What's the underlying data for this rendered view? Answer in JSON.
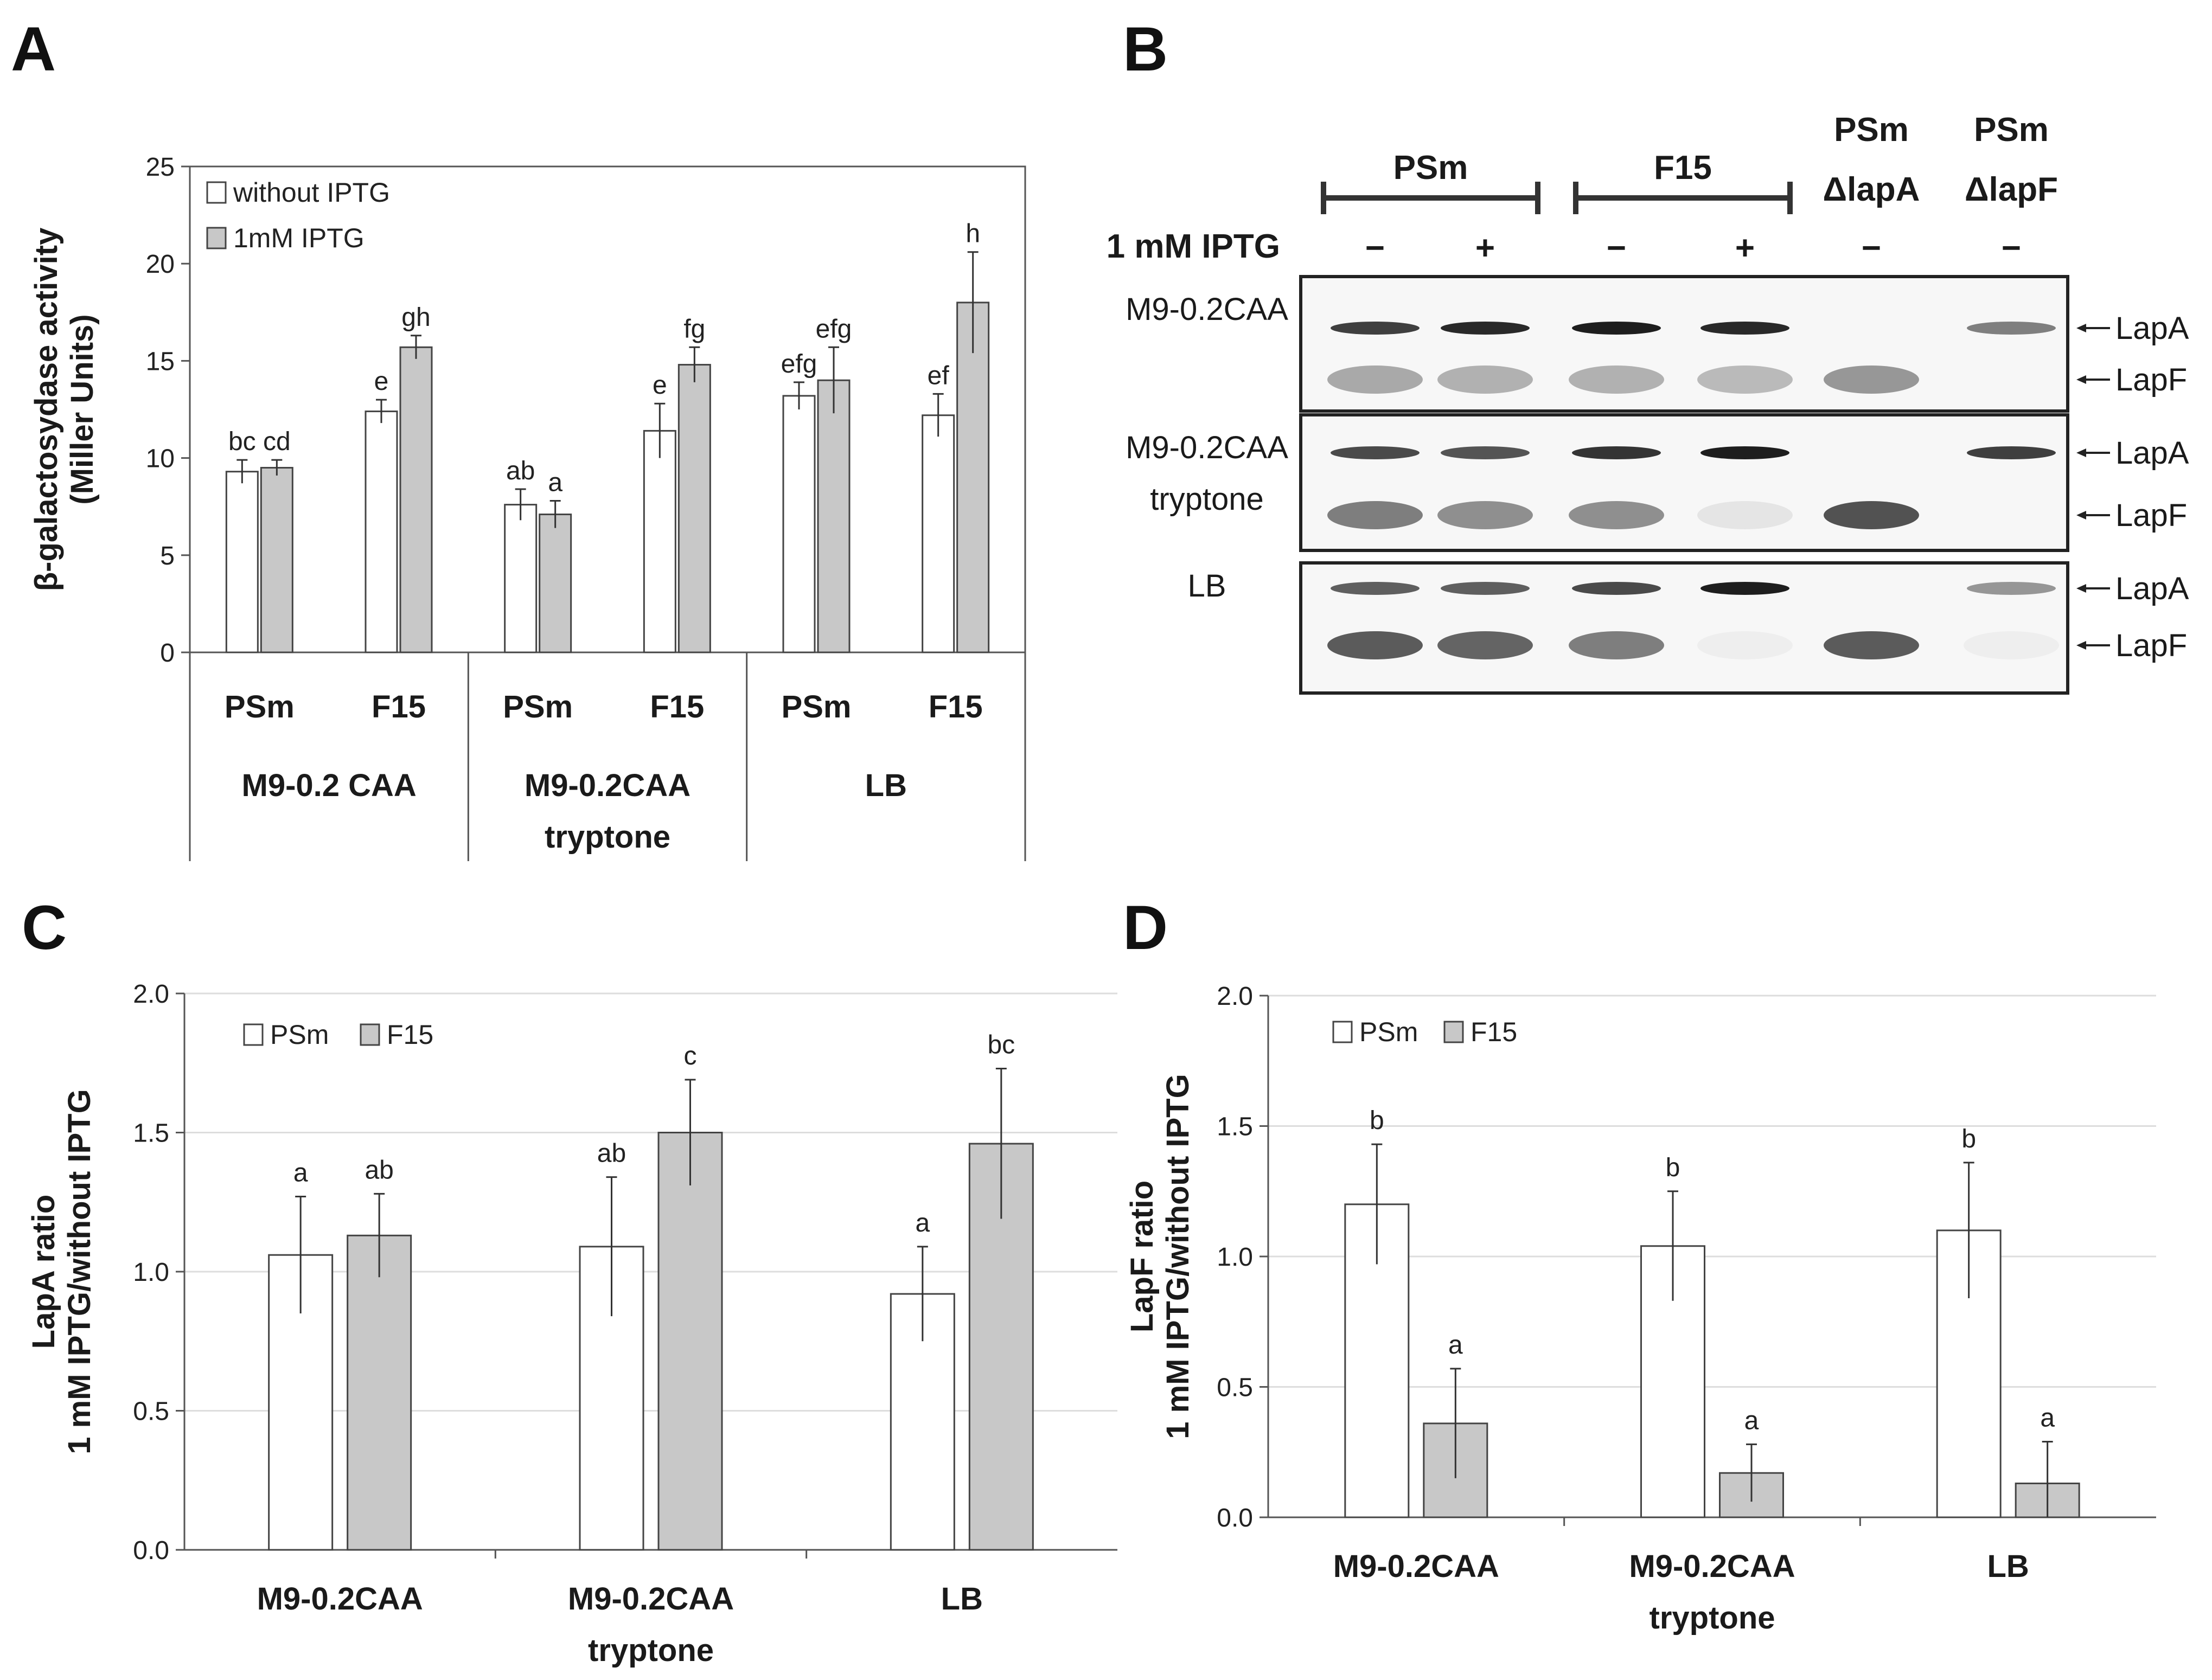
{
  "panel_letters": [
    "A",
    "B",
    "C",
    "D"
  ],
  "colors": {
    "open_bar": "#ffffff",
    "filled_bar": "#c8c8c8",
    "axis": "#555555",
    "grid": "#dddddd",
    "blot_band": "#1e1e1e"
  },
  "chart_data": [
    {
      "panel": "A",
      "type": "bar",
      "ylabel_lines": [
        "β-galactosydase activity",
        "(Miller Units)"
      ],
      "ylim": [
        0,
        25
      ],
      "yticks": [
        "0",
        "5",
        "10",
        "15",
        "20",
        "25"
      ],
      "grid": false,
      "legend_position": "top-left",
      "categories": [
        "PSm",
        "F15",
        "PSm",
        "F15",
        "PSm",
        "F15"
      ],
      "groups": [
        {
          "lines": [
            "M9-0.2 CAA"
          ]
        },
        {
          "lines": [
            "M9-0.2CAA",
            "tryptone"
          ]
        },
        {
          "lines": [
            "LB"
          ]
        }
      ],
      "series": [
        {
          "name": "without IPTG",
          "style": "open",
          "values": [
            9.3,
            12.4,
            7.6,
            11.4,
            13.2,
            12.2
          ],
          "errors": [
            0.6,
            0.6,
            0.8,
            1.4,
            0.7,
            1.1
          ],
          "labels": [
            "bc",
            "e",
            "ab",
            "e",
            "efg",
            "ef"
          ]
        },
        {
          "name": "1mM IPTG",
          "style": "filled",
          "values": [
            9.5,
            15.7,
            7.1,
            14.8,
            14.0,
            18.0
          ],
          "errors": [
            0.4,
            0.6,
            0.7,
            0.9,
            1.7,
            2.6
          ],
          "labels": [
            "cd",
            "gh",
            "a",
            "fg",
            "efg",
            "h"
          ]
        }
      ]
    },
    {
      "panel": "C",
      "type": "bar",
      "ylabel_lines": [
        "LapA ratio",
        "1 mM IPTG/without IPTG"
      ],
      "ylim": [
        0,
        2
      ],
      "yticks": [
        "0.0",
        "0.5",
        "1.0",
        "1.5",
        "2.0"
      ],
      "grid": true,
      "legend_position": "top-left",
      "groups": [
        {
          "lines": [
            "M9-0.2CAA"
          ]
        },
        {
          "lines": [
            "M9-0.2CAA",
            "tryptone"
          ]
        },
        {
          "lines": [
            "LB"
          ]
        }
      ],
      "series": [
        {
          "name": "PSm",
          "style": "open",
          "values": [
            1.06,
            1.09,
            0.92
          ],
          "errors": [
            0.21,
            0.25,
            0.17
          ],
          "labels": [
            "a",
            "ab",
            "a"
          ]
        },
        {
          "name": "F15",
          "style": "filled",
          "values": [
            1.13,
            1.5,
            1.46
          ],
          "errors": [
            0.15,
            0.19,
            0.27
          ],
          "labels": [
            "ab",
            "c",
            "bc"
          ]
        }
      ]
    },
    {
      "panel": "D",
      "type": "bar",
      "ylabel_lines": [
        "LapF ratio",
        "1 mM IPTG/without IPTG"
      ],
      "ylim": [
        0,
        2
      ],
      "yticks": [
        "0.0",
        "0.5",
        "1.0",
        "1.5",
        "2.0"
      ],
      "grid": true,
      "legend_position": "top-left",
      "groups": [
        {
          "lines": [
            "M9-0.2CAA"
          ]
        },
        {
          "lines": [
            "M9-0.2CAA",
            "tryptone"
          ]
        },
        {
          "lines": [
            "LB"
          ]
        }
      ],
      "series": [
        {
          "name": "PSm",
          "style": "open",
          "values": [
            1.2,
            1.04,
            1.1
          ],
          "errors": [
            0.23,
            0.21,
            0.26
          ],
          "labels": [
            "b",
            "b",
            "b"
          ]
        },
        {
          "name": "F15",
          "style": "filled",
          "values": [
            0.36,
            0.17,
            0.13
          ],
          "errors": [
            0.21,
            0.11,
            0.16
          ],
          "labels": [
            "a",
            "a",
            "a"
          ]
        }
      ]
    }
  ],
  "blot": {
    "strain_groups": [
      {
        "label": "PSm"
      },
      {
        "label": "F15"
      }
    ],
    "single_strains": [
      {
        "line1": "PSm",
        "line2": "ΔlapA"
      },
      {
        "line1": "PSm",
        "line2": "ΔlapF"
      }
    ],
    "iptg_label": "1 mM IPTG",
    "iptg_signs": [
      "−",
      "+",
      "−",
      "+",
      "−",
      "−"
    ],
    "conditions": [
      {
        "lines": [
          "M9-0.2CAA"
        ]
      },
      {
        "lines": [
          "M9-0.2CAA",
          "tryptone"
        ]
      },
      {
        "lines": [
          "LB"
        ]
      }
    ],
    "band_labels": [
      "LapA",
      "LapF"
    ],
    "lapA_intensity": [
      [
        0.85,
        0.95,
        1.0,
        0.95,
        0.0,
        0.55
      ],
      [
        0.8,
        0.75,
        0.9,
        1.0,
        0.0,
        0.85
      ],
      [
        0.7,
        0.7,
        0.8,
        1.0,
        0.0,
        0.45
      ]
    ],
    "lapF_intensity": [
      [
        0.45,
        0.4,
        0.4,
        0.35,
        0.55,
        0.0
      ],
      [
        0.7,
        0.6,
        0.6,
        0.1,
        0.95,
        0.0
      ],
      [
        0.9,
        0.85,
        0.7,
        0.05,
        0.9,
        0.05
      ]
    ]
  }
}
